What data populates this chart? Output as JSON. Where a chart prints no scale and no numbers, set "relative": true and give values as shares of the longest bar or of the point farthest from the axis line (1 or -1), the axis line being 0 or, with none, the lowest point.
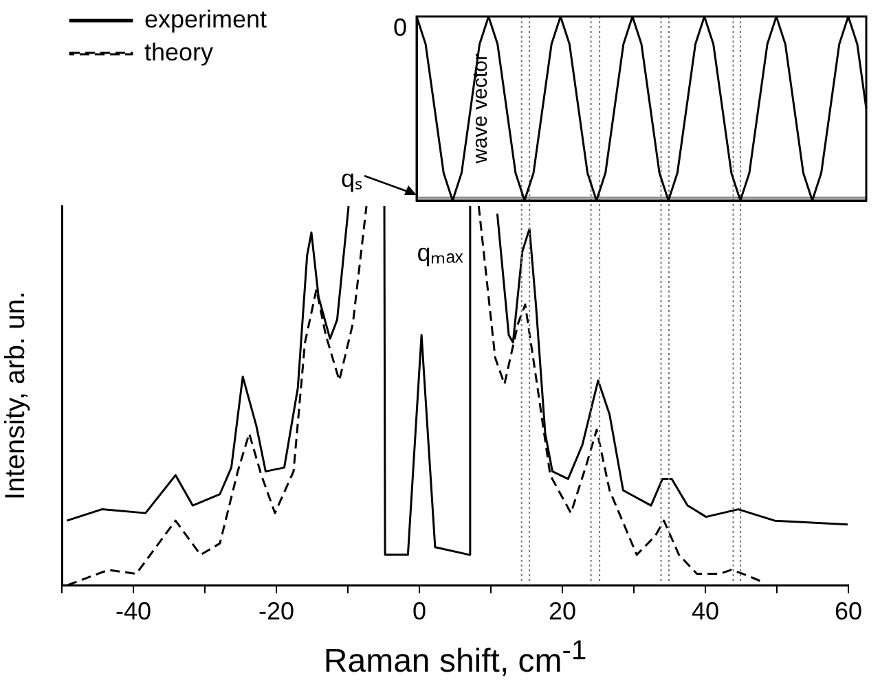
{
  "chart_data": [
    {
      "type": "line",
      "xlabel": "Raman shift, cm$^{-1}$",
      "ylabel": "Intensity, arb. un.",
      "relative": true,
      "tick_labels": "x",
      "legend": "top left",
      "marker": "none",
      "xlim": [
        -50,
        60
      ],
      "xticks": [
        {
          "value": -50,
          "label": null
        },
        -40,
        {
          "value": -30,
          "label": null
        },
        -20,
        {
          "value": -10,
          "label": null
        },
        0,
        {
          "value": 10,
          "label": null
        },
        20,
        {
          "value": 30,
          "label": null
        },
        40,
        {
          "value": 50,
          "label": null
        },
        60
      ],
      "series": [
        {
          "name": "experiment",
          "color": "#000000",
          "line_style": "solid",
          "x": [
            -49.3,
            -44.4,
            -38.3,
            -34.1,
            -31.7,
            -27.9,
            -26.3,
            -24.7,
            -22.8,
            -21.5,
            -18.9,
            -17.0,
            -15.7,
            -15.1,
            -14.1,
            -12.5,
            -11.5,
            -9.9,
            -7.0,
            -4.9,
            -4.8,
            -1.6,
            0.3,
            2.2,
            7.0,
            7.1,
            9.0,
            10.9,
            12.5,
            13.1,
            14.4,
            15.4,
            16.3,
            17.6,
            18.6,
            20.8,
            22.8,
            25.0,
            26.6,
            28.5,
            32.4,
            34.0,
            35.3,
            37.5,
            40.1,
            44.6,
            49.7,
            59.9
          ],
          "values": [
            0.17,
            0.2,
            0.19,
            0.29,
            0.21,
            0.24,
            0.31,
            0.55,
            0.42,
            0.3,
            0.31,
            0.52,
            0.87,
            0.93,
            0.76,
            0.65,
            0.7,
            1.0,
            null,
            1.0,
            0.08,
            0.08,
            0.66,
            0.1,
            0.08,
            1.0,
            null,
            0.98,
            0.66,
            0.64,
            0.88,
            0.94,
            0.74,
            0.4,
            0.3,
            0.28,
            0.37,
            0.54,
            0.45,
            0.25,
            0.21,
            0.28,
            0.28,
            0.21,
            0.18,
            0.2,
            0.17,
            0.16
          ]
        },
        {
          "name": "theory",
          "color": "#000000",
          "line_style": "dashed",
          "x": [
            -49.2,
            -43.5,
            -39.6,
            -34.1,
            -30.6,
            -27.9,
            -25.4,
            -23.8,
            -22.1,
            -20.2,
            -17.6,
            -16.0,
            -14.4,
            -13.1,
            -11.2,
            -9.3,
            -7.4,
            0,
            8.3,
            10.6,
            11.9,
            13.8,
            14.8,
            16.3,
            18.3,
            21.2,
            23.4,
            24.8,
            26.6,
            30.4,
            33.0,
            34.2,
            36.3,
            38.8,
            42.0,
            43.6,
            45.2,
            47.8
          ],
          "values": [
            0.0,
            0.04,
            0.03,
            0.17,
            0.08,
            0.11,
            0.3,
            0.4,
            0.29,
            0.19,
            0.3,
            0.64,
            0.78,
            0.66,
            0.54,
            0.69,
            1.0,
            null,
            1.0,
            0.6,
            0.53,
            0.69,
            0.74,
            0.55,
            0.29,
            0.19,
            0.32,
            0.41,
            0.25,
            0.08,
            0.13,
            0.17,
            0.08,
            0.03,
            0.03,
            0.04,
            0.03,
            0.01
          ]
        }
      ],
      "ref_lines": [
        {
          "axis": "x",
          "value": 14.3,
          "color": "#777777",
          "line_style": "dotted"
        },
        {
          "axis": "x",
          "value": 15.4,
          "color": "#777777",
          "line_style": "dotted"
        },
        {
          "axis": "x",
          "value": 24.0,
          "color": "#777777",
          "line_style": "dotted"
        },
        {
          "axis": "x",
          "value": 25.2,
          "color": "#777777",
          "line_style": "dotted"
        },
        {
          "axis": "x",
          "value": 33.8,
          "color": "#777777",
          "line_style": "dotted"
        },
        {
          "axis": "x",
          "value": 34.9,
          "color": "#777777",
          "line_style": "dotted"
        },
        {
          "axis": "x",
          "value": 43.9,
          "color": "#777777",
          "line_style": "dotted"
        },
        {
          "axis": "x",
          "value": 44.9,
          "color": "#777777",
          "line_style": "dotted"
        }
      ]
    },
    {
      "type": "line",
      "ylabel": "wave vector",
      "relative": true,
      "tick_labels": false,
      "marker": "none",
      "annotations": [
        "0",
        "qₛ",
        "qₘₐₓ"
      ],
      "categories": [
        null,
        null,
        null,
        null,
        null,
        null,
        null,
        null,
        null,
        null,
        null,
        null,
        null,
        null,
        null,
        null,
        null,
        null,
        null,
        null,
        null,
        null,
        null,
        null,
        null,
        null,
        null,
        null,
        null,
        null,
        null,
        null,
        null,
        null,
        null,
        null,
        null,
        null,
        null,
        null,
        null,
        null,
        null,
        null,
        null,
        null,
        null,
        null,
        null,
        null,
        null
      ],
      "series": [
        {
          "color": "#000000",
          "line_style": "solid",
          "values": [
            1,
            0.85,
            0.5,
            0.15,
            0,
            0.15,
            0.5,
            0.85,
            1,
            0.85,
            0.5,
            0.15,
            0,
            0.15,
            0.5,
            0.85,
            1,
            0.85,
            0.5,
            0.15,
            0,
            0.15,
            0.5,
            0.85,
            1,
            0.85,
            0.5,
            0.15,
            0,
            0.15,
            0.5,
            0.85,
            1,
            0.85,
            0.5,
            0.15,
            0,
            0.15,
            0.5,
            0.85,
            1,
            0.85,
            0.5,
            0.15,
            0,
            0.15,
            0.5,
            0.85,
            1,
            0.85,
            0.5
          ]
        },
        {
          "color": "#888888",
          "line_style": "solid",
          "values": [
            0.015,
            0.015,
            0.015,
            0.015,
            0.015,
            0.015,
            0.015,
            0.015,
            0.015,
            0.015,
            0.015,
            0.015,
            0.015,
            0.015,
            0.015,
            0.015,
            0.015,
            0.015,
            0.015,
            0.015,
            0.015,
            0.015,
            0.015,
            0.015,
            0.015,
            0.015,
            0.015,
            0.015,
            0.015,
            0.015,
            0.015,
            0.015,
            0.015,
            0.015,
            0.015,
            0.015,
            0.015,
            0.015,
            0.015,
            0.015,
            0.015,
            0.015,
            0.015,
            0.015,
            0.015,
            0.015,
            0.015,
            0.015,
            0.015,
            0.015,
            0.015
          ]
        }
      ]
    }
  ]
}
